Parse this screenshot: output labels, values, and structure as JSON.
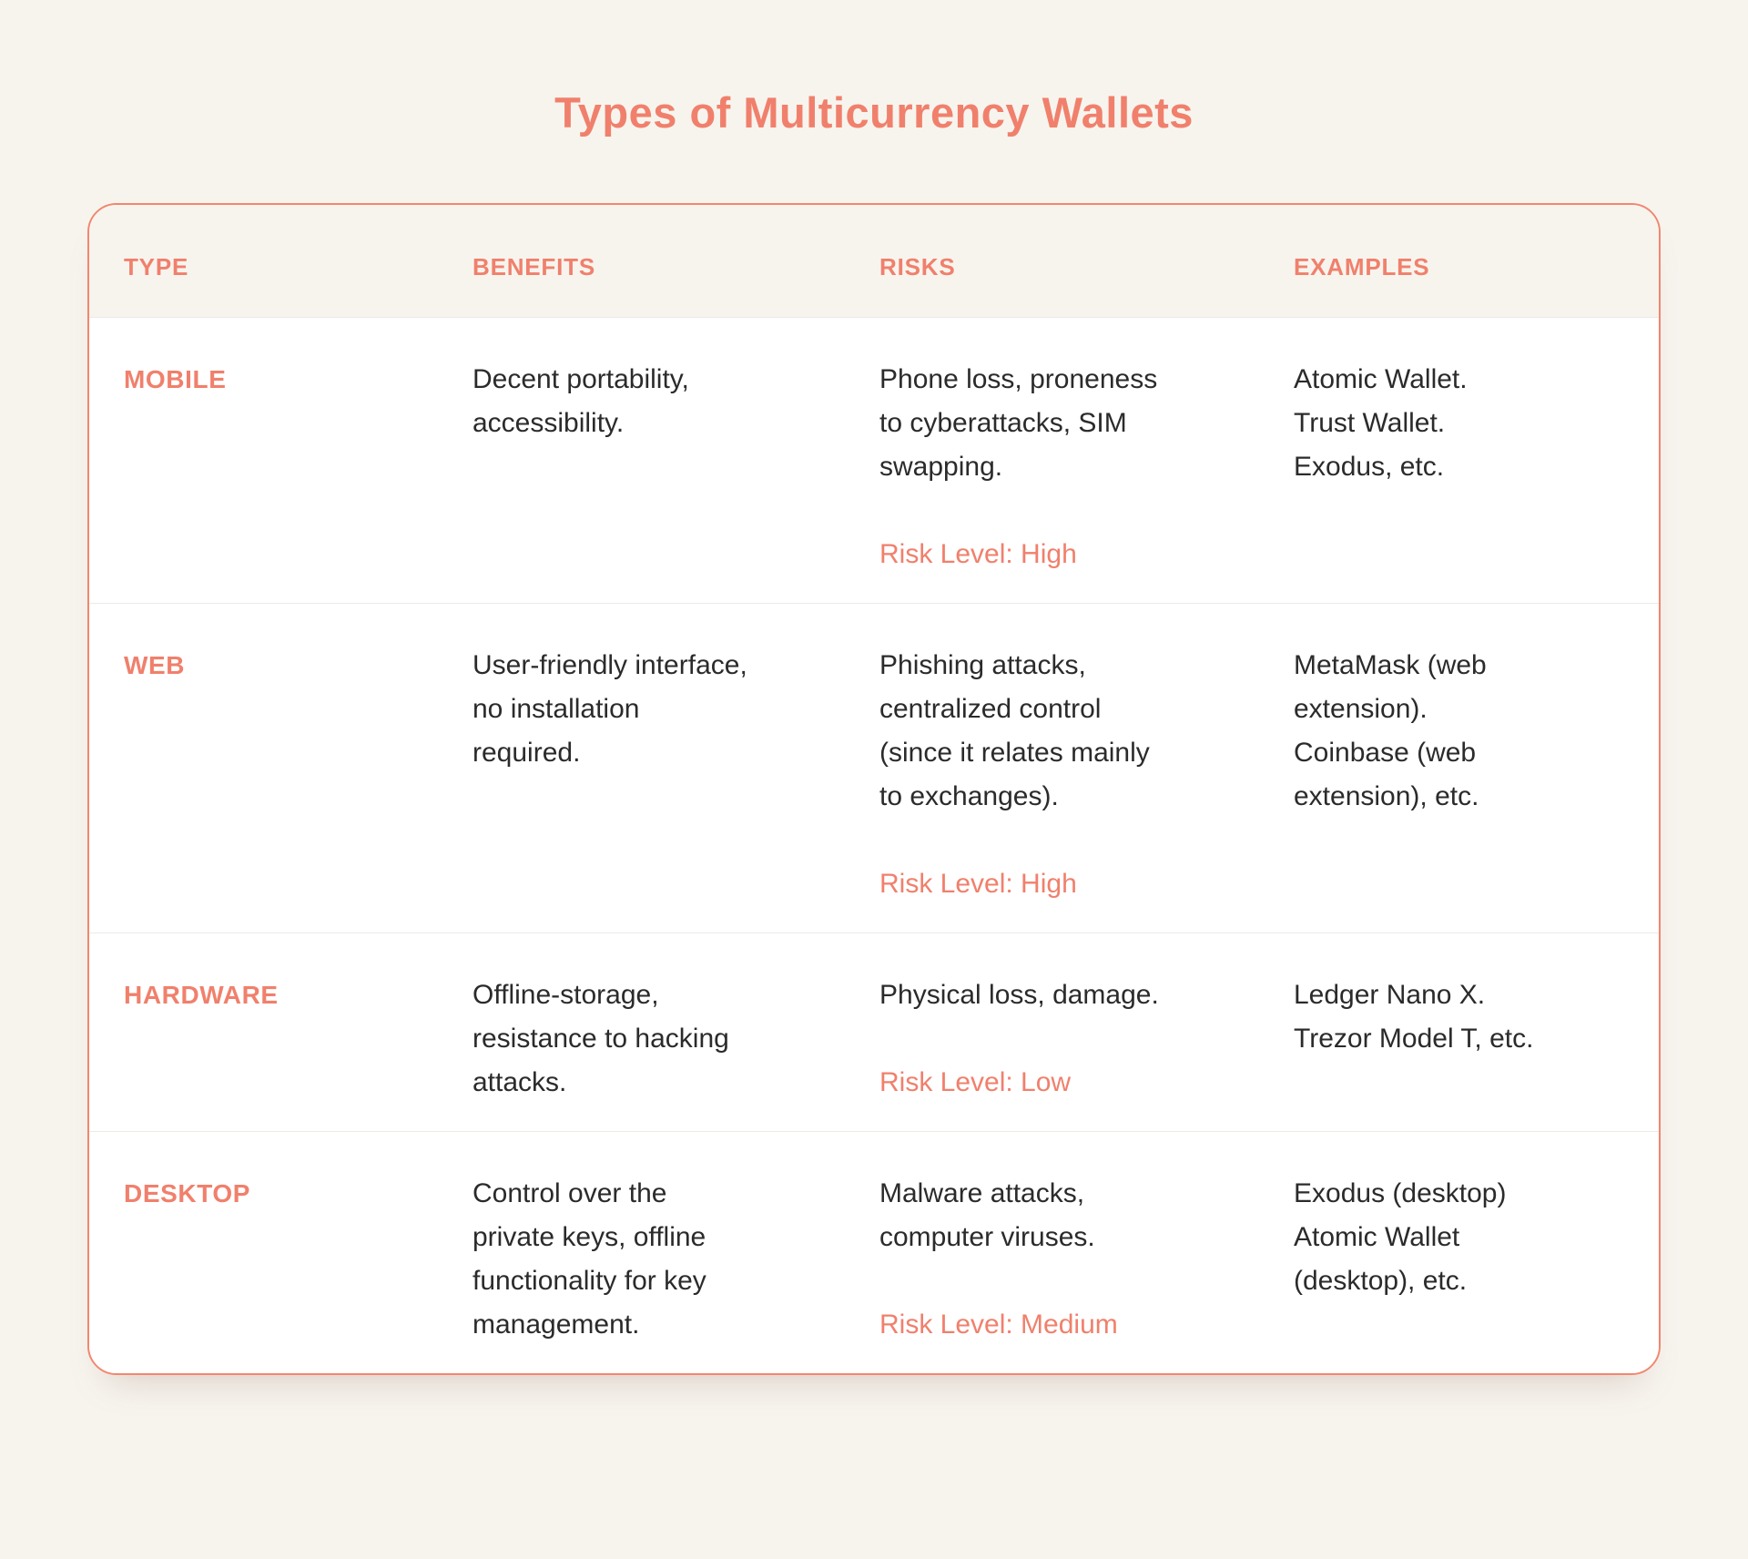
{
  "page": {
    "title": "Types of Multicurrency Wallets"
  },
  "colors": {
    "accent": "#F0806C",
    "page_background": "#F7F4EE",
    "card_background": "#FFFFFF",
    "card_border": "#F2866F",
    "body_text": "#2B2B2B",
    "row_divider": "#ECEAE5"
  },
  "table": {
    "headers": [
      "TYPE",
      "BENEFITS",
      "RISKS",
      "EXAMPLES"
    ],
    "rows": [
      {
        "type": "MOBILE",
        "benefits": "Decent portability,\naccessibility.",
        "risks": "Phone loss, proneness\nto cyberattacks, SIM\nswapping.",
        "risk_level": "Risk Level: High",
        "examples": "Atomic Wallet.\nTrust Wallet.\nExodus, etc."
      },
      {
        "type": "WEB",
        "benefits": "User-friendly interface,\nno installation\nrequired.",
        "risks": "Phishing attacks,\ncentralized control\n(since it relates mainly\nto exchanges).",
        "risk_level": "Risk Level: High",
        "examples": "MetaMask (web\nextension).\nCoinbase (web\nextension), etc."
      },
      {
        "type": "HARDWARE",
        "benefits": "Offline-storage,\nresistance to hacking\nattacks.",
        "risks": "Physical loss, damage.",
        "risk_level": "Risk Level: Low",
        "examples": "Ledger Nano X.\nTrezor Model T, etc."
      },
      {
        "type": "DESKTOP",
        "benefits": "Control over the\nprivate keys, offline\nfunctionality for key\nmanagement.",
        "risks": "Malware attacks,\ncomputer viruses.",
        "risk_level": "Risk Level: Medium",
        "examples": "Exodus (desktop)\nAtomic Wallet\n(desktop), etc."
      }
    ]
  }
}
